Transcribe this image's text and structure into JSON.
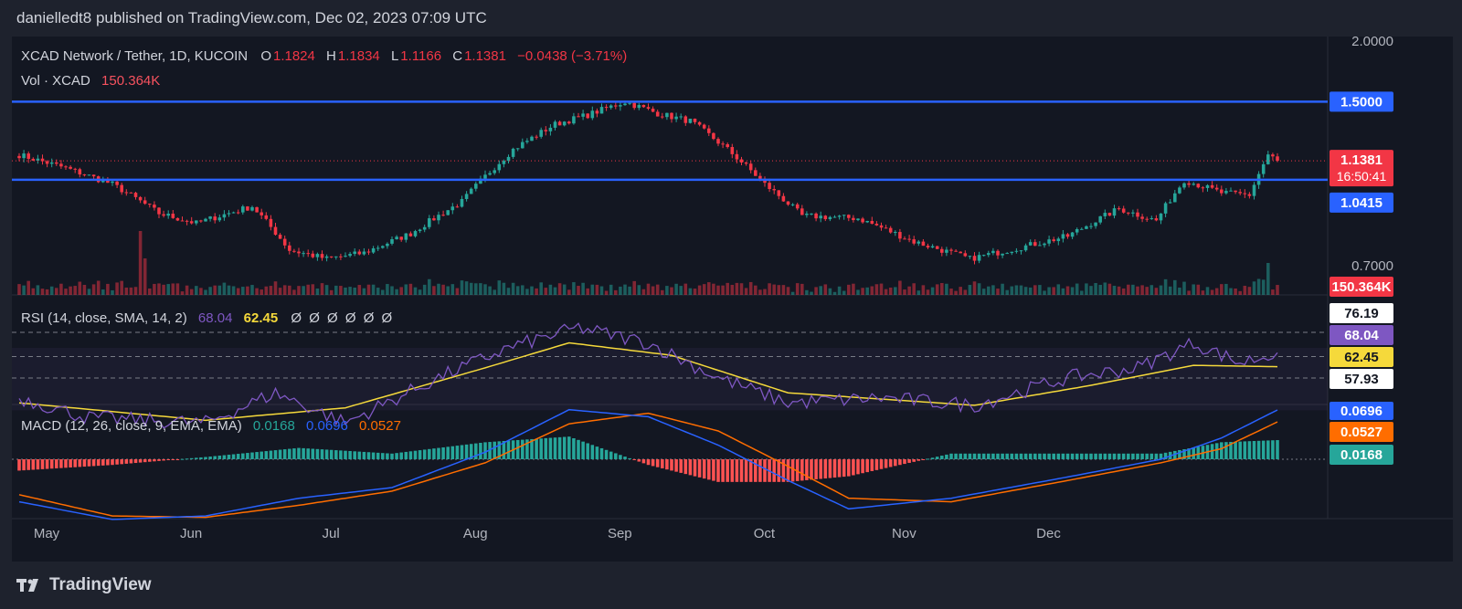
{
  "header": {
    "publish_text": "danielledt8 published on TradingView.com, Dec 02, 2023 07:09 UTC"
  },
  "footer": {
    "brand": "TradingView"
  },
  "colors": {
    "up": "#26a69a",
    "down": "#f23645",
    "level": "#2962ff",
    "rsi": "#7e57c2",
    "rsi_ma": "#f5d93b",
    "macd": "#2962ff",
    "signal": "#ff6d00",
    "background": "#131722"
  },
  "legend": {
    "symbol": "XCAD Network / Tether, 1D, KUCOIN",
    "open_label": "O",
    "open": "1.1824",
    "high_label": "H",
    "high": "1.1834",
    "low_label": "L",
    "low": "1.1166",
    "close_label": "C",
    "close": "1.1381",
    "change": "−0.0438 (−3.71%)",
    "vol_label": "Vol · XCAD",
    "vol": "150.364K"
  },
  "rsi_legend": {
    "label": "RSI (14, close, SMA, 14, 2)",
    "rsi": "68.04",
    "ma": "62.45",
    "empties": "Ø Ø Ø Ø Ø Ø"
  },
  "macd_legend": {
    "label": "MACD (12, 26, close, 9, EMA, EMA)",
    "hist": "0.0168",
    "macd": "0.0696",
    "signal": "0.0527"
  },
  "price_axis": {
    "ticks": [
      "2.0000",
      "0.7000"
    ],
    "level_labels": [
      "1.5000",
      "1.0415"
    ],
    "last_price": "1.1381",
    "countdown": "16:50:41",
    "vol_label": "150.364K"
  },
  "rsi_axis": {
    "labels": [
      "76.19",
      "68.04",
      "62.45",
      "57.93"
    ]
  },
  "macd_axis": {
    "labels": [
      "0.0696",
      "0.0527",
      "0.0168"
    ]
  },
  "time_axis": {
    "labels": [
      "May",
      "Jun",
      "Jul",
      "Aug",
      "Sep",
      "Oct",
      "Nov",
      "Dec"
    ]
  },
  "chart_data": {
    "type": "line",
    "title": "XCAD Network / Tether, 1D, KUCOIN",
    "x_unit": "day index (May 1 – Dec 2, 2023)",
    "horizontal_levels": [
      1.5,
      1.0415
    ],
    "close_keypoints": [
      {
        "d": 0,
        "c": 1.17
      },
      {
        "d": 10,
        "c": 1.1
      },
      {
        "d": 20,
        "c": 1.02
      },
      {
        "d": 30,
        "c": 0.89
      },
      {
        "d": 38,
        "c": 0.85
      },
      {
        "d": 50,
        "c": 0.92
      },
      {
        "d": 58,
        "c": 0.75
      },
      {
        "d": 66,
        "c": 0.72
      },
      {
        "d": 74,
        "c": 0.74
      },
      {
        "d": 84,
        "c": 0.81
      },
      {
        "d": 95,
        "c": 0.94
      },
      {
        "d": 106,
        "c": 1.2
      },
      {
        "d": 115,
        "c": 1.35
      },
      {
        "d": 122,
        "c": 1.41
      },
      {
        "d": 130,
        "c": 1.5
      },
      {
        "d": 137,
        "c": 1.42
      },
      {
        "d": 144,
        "c": 1.37
      },
      {
        "d": 152,
        "c": 1.2
      },
      {
        "d": 160,
        "c": 1.02
      },
      {
        "d": 168,
        "c": 0.88
      },
      {
        "d": 180,
        "c": 0.87
      },
      {
        "d": 192,
        "c": 0.78
      },
      {
        "d": 204,
        "c": 0.72
      },
      {
        "d": 215,
        "c": 0.76
      },
      {
        "d": 225,
        "c": 0.8
      },
      {
        "d": 236,
        "c": 0.91
      },
      {
        "d": 244,
        "c": 0.86
      },
      {
        "d": 250,
        "c": 1.04
      },
      {
        "d": 258,
        "c": 0.98
      },
      {
        "d": 264,
        "c": 0.97
      },
      {
        "d": 268,
        "c": 1.17
      },
      {
        "d": 270,
        "c": 1.1381
      }
    ],
    "rsi_keypoints": [
      {
        "d": 0,
        "v": 50
      },
      {
        "d": 15,
        "v": 42
      },
      {
        "d": 40,
        "v": 40
      },
      {
        "d": 55,
        "v": 52
      },
      {
        "d": 70,
        "v": 40
      },
      {
        "d": 90,
        "v": 58
      },
      {
        "d": 105,
        "v": 70
      },
      {
        "d": 120,
        "v": 78
      },
      {
        "d": 135,
        "v": 72
      },
      {
        "d": 150,
        "v": 58
      },
      {
        "d": 165,
        "v": 48
      },
      {
        "d": 185,
        "v": 50
      },
      {
        "d": 205,
        "v": 47
      },
      {
        "d": 225,
        "v": 58
      },
      {
        "d": 240,
        "v": 62
      },
      {
        "d": 252,
        "v": 72
      },
      {
        "d": 262,
        "v": 64
      },
      {
        "d": 270,
        "v": 68.04
      }
    ],
    "rsi_ma_keypoints": [
      {
        "d": 0,
        "v": 48
      },
      {
        "d": 40,
        "v": 41
      },
      {
        "d": 70,
        "v": 46
      },
      {
        "d": 100,
        "v": 62
      },
      {
        "d": 118,
        "v": 72
      },
      {
        "d": 140,
        "v": 67
      },
      {
        "d": 165,
        "v": 52
      },
      {
        "d": 205,
        "v": 47
      },
      {
        "d": 230,
        "v": 55
      },
      {
        "d": 252,
        "v": 63
      },
      {
        "d": 270,
        "v": 62.45
      }
    ],
    "macd_keypoints": [
      {
        "d": 0,
        "m": -0.06,
        "s": -0.05
      },
      {
        "d": 20,
        "m": -0.085,
        "s": -0.08
      },
      {
        "d": 40,
        "m": -0.08,
        "s": -0.082
      },
      {
        "d": 60,
        "m": -0.055,
        "s": -0.065
      },
      {
        "d": 80,
        "m": -0.04,
        "s": -0.045
      },
      {
        "d": 100,
        "m": 0.01,
        "s": -0.005
      },
      {
        "d": 118,
        "m": 0.07,
        "s": 0.05
      },
      {
        "d": 135,
        "m": 0.06,
        "s": 0.065
      },
      {
        "d": 150,
        "m": 0.02,
        "s": 0.04
      },
      {
        "d": 165,
        "m": -0.03,
        "s": -0.01
      },
      {
        "d": 178,
        "m": -0.07,
        "s": -0.055
      },
      {
        "d": 200,
        "m": -0.055,
        "s": -0.06
      },
      {
        "d": 225,
        "m": -0.025,
        "s": -0.03
      },
      {
        "d": 245,
        "m": 0.0,
        "s": -0.005
      },
      {
        "d": 258,
        "m": 0.03,
        "s": 0.015
      },
      {
        "d": 270,
        "m": 0.0696,
        "s": 0.0527
      }
    ],
    "last": {
      "close": 1.1381,
      "rsi": 68.04,
      "rsi_ma": 62.45,
      "rsi_levels": [
        76.19,
        57.93
      ],
      "macd": 0.0696,
      "signal": 0.0527,
      "hist": 0.0168
    }
  }
}
